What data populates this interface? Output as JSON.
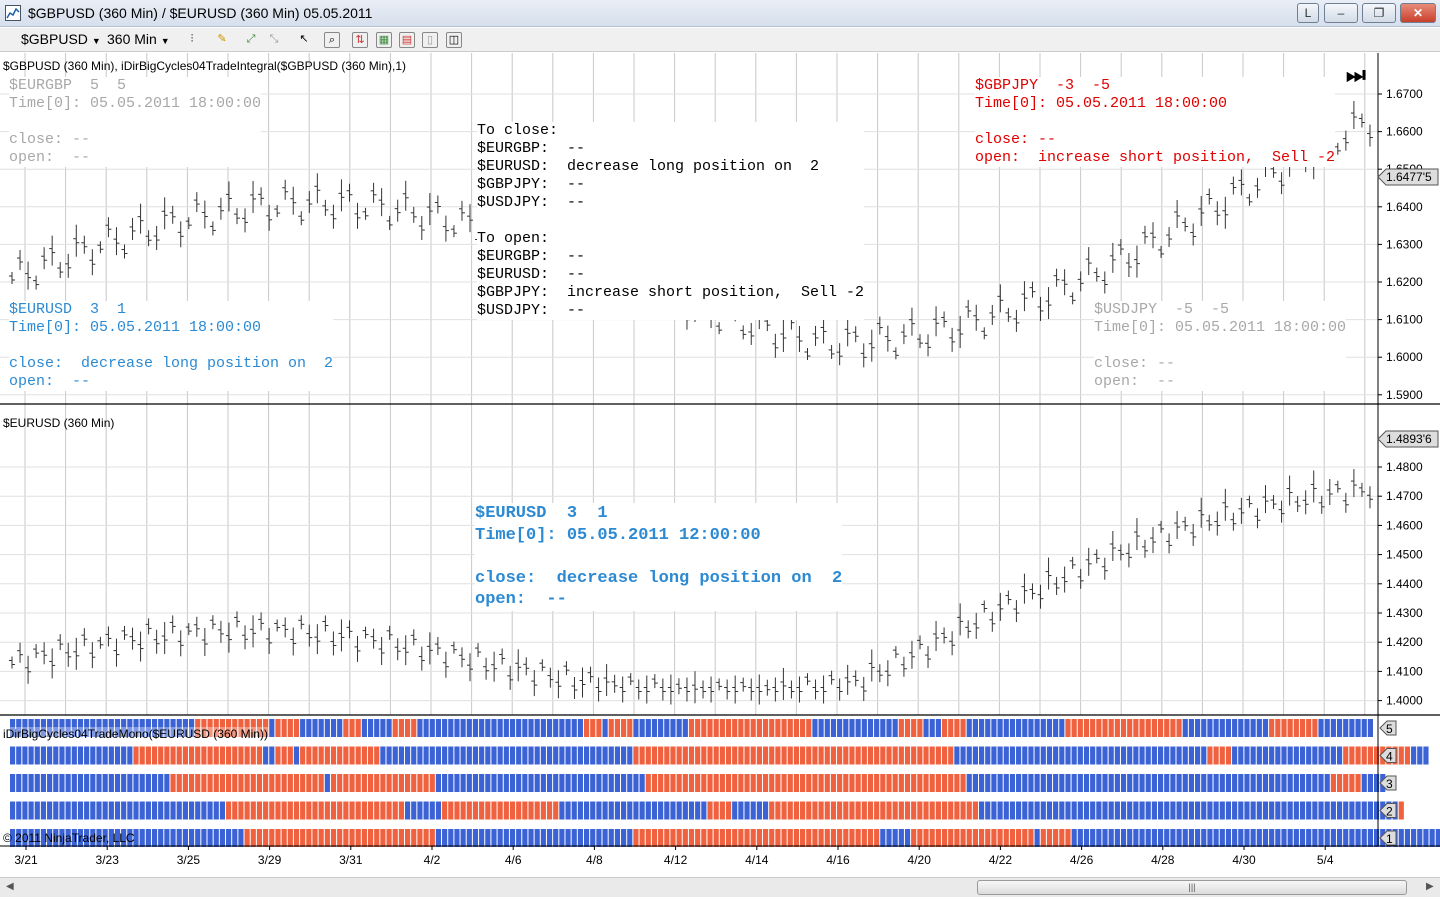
{
  "window": {
    "title": "$GBPUSD (360 Min) / $EURUSD (360 Min)  05.05.2011",
    "btn_l": "L",
    "btn_min": "‒",
    "btn_max": "❐",
    "btn_close": "✕"
  },
  "toolbar": {
    "instrument": "$GBPUSD",
    "interval": "360 Min"
  },
  "panel1": {
    "title": "$GBPUSD (360 Min), iDirBigCycles04TradeIntegral($GBPUSD (360 Min),1)",
    "y_ticks": [
      "1.6700",
      "1.6600",
      "1.6500",
      "1.6400",
      "1.6300",
      "1.6200",
      "1.6100",
      "1.6000",
      "1.5900"
    ],
    "price_box": "1.6477'5",
    "eurgbp": "$EURGBP  5  5\nTime[0]: 05.05.2011 18:00:00\n\nclose: --\nopen:  --",
    "eurusd": "$EURUSD  3  1\nTime[0]: 05.05.2011 18:00:00\n\nclose:  decrease long position on  2\nopen:  --",
    "gbpjpy": "$GBPJPY  -3  -5\nTime[0]: 05.05.2011 18:00:00\n\nclose: --\nopen:  increase short position,  Sell -2",
    "usdjpy": "$USDJPY  -5  -5\nTime[0]: 05.05.2011 18:00:00\n\nclose: --\nopen:  --",
    "summary": "To close:\n$EURGBP:  --\n$EURUSD:  decrease long position on  2\n$GBPJPY:  --\n$USDJPY:  --\n\nTo open:\n$EURGBP:  --\n$EURUSD:  --\n$GBPJPY:  increase short position,  Sell -2\n$USDJPY:  --"
  },
  "panel2": {
    "title": "$EURUSD (360 Min)",
    "y_ticks": [
      "1.4800",
      "1.4700",
      "1.4600",
      "1.4500",
      "1.4400",
      "1.4300",
      "1.4200",
      "1.4100",
      "1.4000"
    ],
    "price_box": "1.4893'6",
    "info": "$EURUSD  3  1\nTime[0]: 05.05.2011 12:00:00\n\nclose:  decrease long position on  2\nopen:  --"
  },
  "panel3": {
    "title": "iDirBigCycles04TradeMono($EURUSD (360 Min))",
    "row_labels": [
      "5",
      "4",
      "3",
      "2",
      "1"
    ],
    "copyright": "© 2011 NinjaTrader, LLC",
    "colors": {
      "blue": "#3c63d6",
      "red": "#f0623f"
    },
    "rows": [
      "BBBBBBBBBBBBBBBBBBBBBBBBBBBBBBRRRRRRRRRRRRBRRRRBBBBBBBRRRBBBBBRRRRBBBBBBBBBBBBBBBBBBBBBBBBBBBRRRBRRRRBBBBBBBBBRRRRRRRRRRRRRRRRRRRRBBBBBBBBBBBBBBRRRRBBBRRRRBBBBBBBBBBBBBBBBRRRRRRRRRRRRRRRRRRRBBBBBBBBBBBBBBRRRRRRRRBBBBBBBBB",
      "BBBBBBBBBBBBBBBBBBBBRRRRRRRRRRRRRRRRRRRRRBBRRRBRRRRRRRRRRRRRBBBBBBBBBBBBBBBBBBBBBBBBBBBBBBBBBBBBBBBBBRRRRRRRRRRRRRRRRRRRRRRRRRRRRRRRRRRRRRRRRRRRRRRRRRRRRBBBBBBBBBBBBBBBBBBBBBBBBBBBBBBBBBBBBBBBBBRRRRBBBBBBBBBBBBBBBBBBRRRRRRRRRRRBBB",
      "BBBBBBBBBBBBBBBBBBBBBBBBBBRRRRRRRRRRRRRRRRRRRRRRRRRBRRRRRRRRRRRRRRRRRBBBBBBBBBBBBBBBBBBBBBBBBBBBBBBBBBBRRRRRRRRRRRRRRRRRRRRRRRRRRRRRRRRRRRRRRRRRRRRRRRRRRRRBBBBBBBBBBBBBBBBBBBBBBBBBBBBBBBBBBBBBBBBBBBBBBBBBBBBBBBBBBBRRRRRBBBB",
      "BBBBBBBBBBBBBBBBBBBBBBBBBBBBBBBBBBBRRRRRRRRRRRRRRRRRRRRRRRRRRRRRBBBBBBRRRRRRRRRRRRRRRRRRRBBBBBBBBBBBBBBBBBBBBBBBBRRRRBBBBBBRRRRRRRRRRRRRRRRRRRRRRRRRRRRRRRRRRBBBBBBBBBBBBBBBBBBBBBBBBBBBBBBBBBBBBBBBBBBBBBBBBBBBBBBBBBBBBBBBBBBBBR",
      "BBBBBBBBBBBBBBBBBBBBBBBBBBBBBBBBBBBBBBRRRRRRRRRRRRRRRRRRRRRRRRRRRRRRRBBBBBBBBBBBBBBBBBBBBBBBBBBBBBBBBRRRRRRRRRRRRRRRRRRRRRRRRRRRRRRRRRRRRRRRRBBBBBRRRRRRRRRRRRRRRRRRRRBRRRRRBBBBBBBBBBBBBBBBBBBBBBBBBBBBBBBBBBBBBBBBBBBBBBBBBBBBBBBBBBBBBBBBBBBB"
    ]
  },
  "x_axis": {
    "labels": [
      "3/21",
      "3/23",
      "3/25",
      "3/29",
      "3/31",
      "4/2",
      "4/6",
      "4/8",
      "4/12",
      "4/14",
      "4/16",
      "4/20",
      "4/22",
      "4/26",
      "4/28",
      "4/30",
      "5/4"
    ]
  }
}
